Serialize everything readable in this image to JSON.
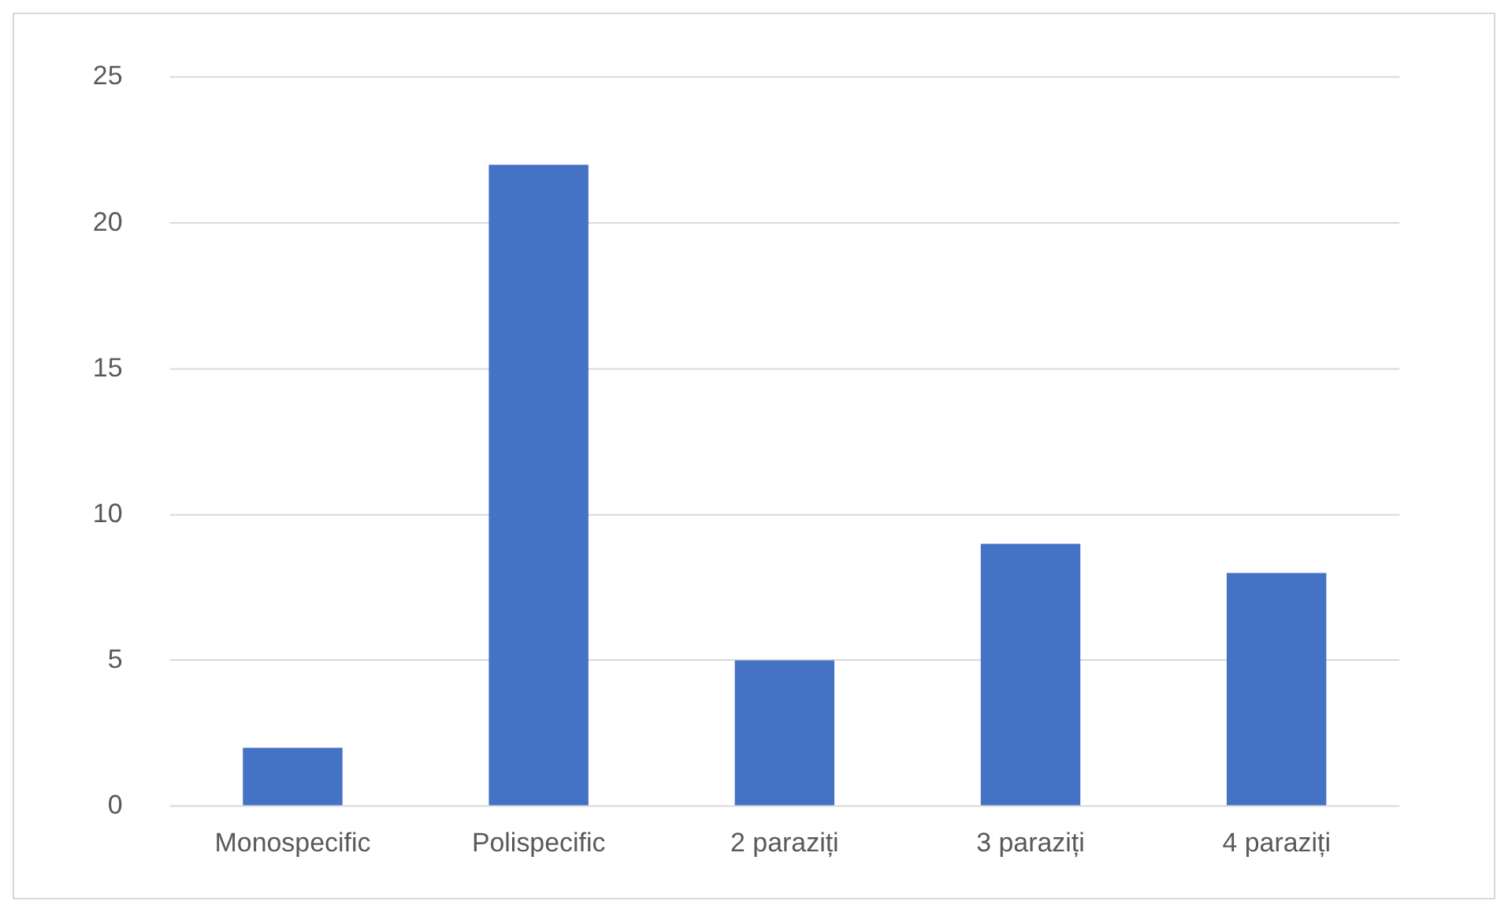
{
  "chart_data": {
    "type": "bar",
    "categories": [
      "Monospecific",
      "Polispecific",
      "2 paraziți",
      "3 paraziți",
      "4 paraziți"
    ],
    "values": [
      2,
      22,
      5,
      9,
      8
    ],
    "color": "#4472c4",
    "ylim": [
      0,
      25
    ],
    "yticks": [
      0,
      5,
      10,
      15,
      20,
      25
    ],
    "grid": "y",
    "legend": false
  }
}
